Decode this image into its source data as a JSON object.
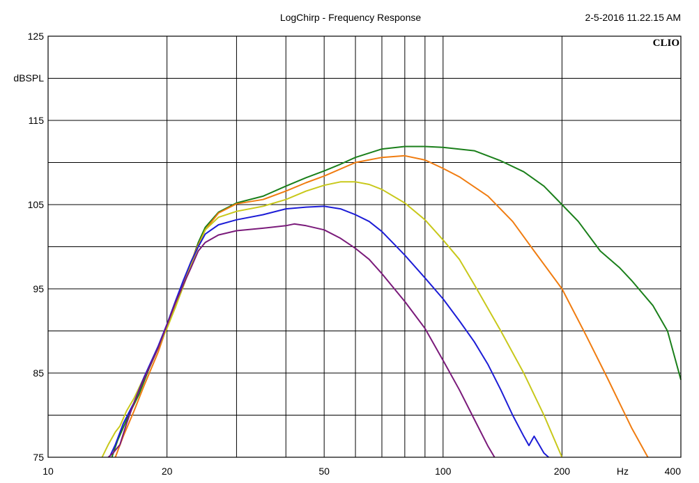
{
  "chart_data": {
    "type": "line",
    "title": "LogChirp - Frequency Response",
    "timestamp": "2-5-2016 11.22.15 AM",
    "logo": "CLIO",
    "ylabel": "dBSPL",
    "xunit": "Hz",
    "x_scale": "log",
    "xlim": [
      10,
      400
    ],
    "ylim": [
      75,
      125
    ],
    "grid": true,
    "xticks": [
      10,
      20,
      50,
      100,
      200,
      400
    ],
    "xticklabels": [
      "10",
      "20",
      "50",
      "100",
      "200",
      "400"
    ],
    "xgrid": [
      20,
      30,
      40,
      50,
      60,
      70,
      80,
      90,
      100,
      200
    ],
    "yticks": [
      125,
      115,
      105,
      95,
      85,
      75
    ],
    "yticklabels": [
      "125",
      "115",
      "105",
      "95",
      "85",
      "75"
    ],
    "ygrid": [
      80,
      85,
      90,
      95,
      100,
      105,
      110,
      115,
      120
    ],
    "series": [
      {
        "color": "#1a7f1a",
        "points": [
          [
            14.5,
            75
          ],
          [
            15,
            77
          ],
          [
            16,
            80
          ],
          [
            17,
            82.5
          ],
          [
            18,
            85.5
          ],
          [
            19,
            88
          ],
          [
            20,
            90.5
          ],
          [
            21,
            92.8
          ],
          [
            22,
            95.5
          ],
          [
            23,
            98
          ],
          [
            24,
            100.5
          ],
          [
            25,
            102.3
          ],
          [
            27,
            104.1
          ],
          [
            30,
            105.2
          ],
          [
            35,
            106
          ],
          [
            40,
            107.2
          ],
          [
            45,
            108.2
          ],
          [
            50,
            109
          ],
          [
            55,
            109.8
          ],
          [
            60,
            110.6
          ],
          [
            70,
            111.6
          ],
          [
            80,
            111.9
          ],
          [
            90,
            111.9
          ],
          [
            100,
            111.8
          ],
          [
            120,
            111.4
          ],
          [
            140,
            110.2
          ],
          [
            160,
            108.9
          ],
          [
            180,
            107.2
          ],
          [
            200,
            105
          ],
          [
            220,
            103
          ],
          [
            250,
            99.5
          ],
          [
            280,
            97.5
          ],
          [
            300,
            96
          ],
          [
            340,
            93
          ],
          [
            370,
            90
          ],
          [
            400,
            84.2
          ]
        ]
      },
      {
        "color": "#f07c10",
        "points": [
          [
            14.8,
            75
          ],
          [
            15.5,
            77.5
          ],
          [
            16.5,
            80.5
          ],
          [
            17.5,
            83.5
          ],
          [
            19,
            87.5
          ],
          [
            20,
            90.5
          ],
          [
            21,
            93
          ],
          [
            22,
            95.8
          ],
          [
            23,
            98.2
          ],
          [
            24,
            100.2
          ],
          [
            25,
            102
          ],
          [
            27,
            104
          ],
          [
            30,
            105.1
          ],
          [
            35,
            105.6
          ],
          [
            40,
            106.6
          ],
          [
            45,
            107.6
          ],
          [
            50,
            108.4
          ],
          [
            60,
            110
          ],
          [
            70,
            110.6
          ],
          [
            80,
            110.8
          ],
          [
            90,
            110.3
          ],
          [
            100,
            109.3
          ],
          [
            110,
            108.3
          ],
          [
            130,
            106
          ],
          [
            150,
            103
          ],
          [
            170,
            99.5
          ],
          [
            200,
            95
          ],
          [
            230,
            89.5
          ],
          [
            260,
            84.5
          ],
          [
            300,
            78.5
          ],
          [
            330,
            75
          ]
        ]
      },
      {
        "color": "#c8c81a",
        "points": [
          [
            13.7,
            75
          ],
          [
            14.2,
            76.5
          ],
          [
            14.8,
            78
          ],
          [
            15.2,
            78.7
          ],
          [
            15.8,
            80.5
          ],
          [
            16.5,
            82
          ],
          [
            17.5,
            84.5
          ],
          [
            19,
            88
          ],
          [
            20,
            90.3
          ],
          [
            21,
            92.8
          ],
          [
            22,
            95.3
          ],
          [
            23,
            97.8
          ],
          [
            24,
            100
          ],
          [
            25,
            102
          ],
          [
            27,
            103.5
          ],
          [
            30,
            104.2
          ],
          [
            35,
            104.8
          ],
          [
            40,
            105.6
          ],
          [
            45,
            106.6
          ],
          [
            50,
            107.3
          ],
          [
            55,
            107.7
          ],
          [
            60,
            107.7
          ],
          [
            65,
            107.4
          ],
          [
            70,
            106.8
          ],
          [
            80,
            105.2
          ],
          [
            90,
            103.2
          ],
          [
            100,
            100.8
          ],
          [
            110,
            98.5
          ],
          [
            120,
            95.5
          ],
          [
            140,
            90
          ],
          [
            160,
            85
          ],
          [
            180,
            80
          ],
          [
            200,
            75
          ]
        ]
      },
      {
        "color": "#1c1cd6",
        "points": [
          [
            14.3,
            75
          ],
          [
            14.8,
            76.5
          ],
          [
            15.5,
            79
          ],
          [
            16.5,
            81.5
          ],
          [
            17.5,
            84.5
          ],
          [
            19,
            88.2
          ],
          [
            20,
            90.8
          ],
          [
            21,
            93.5
          ],
          [
            22,
            96
          ],
          [
            23,
            98.2
          ],
          [
            24,
            100
          ],
          [
            25,
            101.5
          ],
          [
            27,
            102.6
          ],
          [
            30,
            103.2
          ],
          [
            35,
            103.8
          ],
          [
            40,
            104.5
          ],
          [
            45,
            104.7
          ],
          [
            50,
            104.8
          ],
          [
            55,
            104.5
          ],
          [
            60,
            103.8
          ],
          [
            65,
            103
          ],
          [
            70,
            101.8
          ],
          [
            80,
            99
          ],
          [
            90,
            96.3
          ],
          [
            100,
            93.8
          ],
          [
            110,
            91.2
          ],
          [
            120,
            88.7
          ],
          [
            130,
            86
          ],
          [
            140,
            83
          ],
          [
            150,
            80
          ],
          [
            160,
            77.5
          ],
          [
            165,
            76.4
          ],
          [
            170,
            77.5
          ],
          [
            175,
            76.5
          ],
          [
            180,
            75.5
          ],
          [
            185,
            75
          ]
        ]
      },
      {
        "color": "#7a1a7a",
        "points": [
          [
            14.2,
            75
          ],
          [
            14.6,
            75.5
          ],
          [
            15.2,
            76.5
          ],
          [
            15.8,
            79
          ],
          [
            16.5,
            81.5
          ],
          [
            17.5,
            84.3
          ],
          [
            19,
            88
          ],
          [
            20,
            90.7
          ],
          [
            21,
            93.3
          ],
          [
            22,
            95.5
          ],
          [
            23,
            97.5
          ],
          [
            24,
            99.5
          ],
          [
            25,
            100.5
          ],
          [
            27,
            101.4
          ],
          [
            30,
            101.9
          ],
          [
            35,
            102.2
          ],
          [
            40,
            102.5
          ],
          [
            42,
            102.7
          ],
          [
            45,
            102.5
          ],
          [
            50,
            102
          ],
          [
            55,
            101
          ],
          [
            60,
            99.8
          ],
          [
            65,
            98.5
          ],
          [
            70,
            96.8
          ],
          [
            80,
            93.5
          ],
          [
            90,
            90.3
          ],
          [
            100,
            86.5
          ],
          [
            110,
            83
          ],
          [
            120,
            79.5
          ],
          [
            130,
            76.3
          ],
          [
            135,
            75
          ]
        ]
      }
    ]
  }
}
